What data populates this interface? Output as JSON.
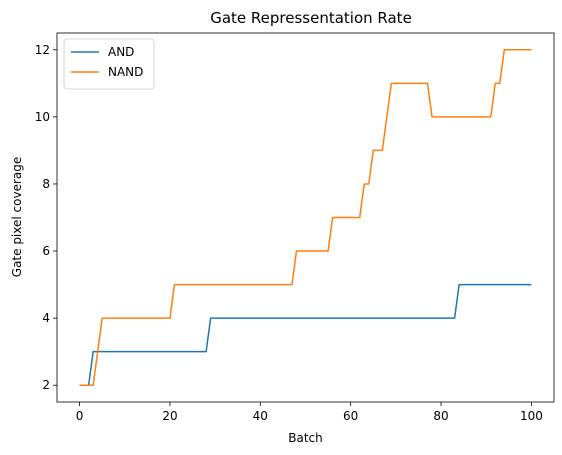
{
  "chart_data": {
    "type": "line",
    "title": "Gate Repressentation Rate",
    "xlabel": "Batch",
    "ylabel": "Gate pixel coverage",
    "xlim": [
      -5,
      105
    ],
    "ylim": [
      1.5,
      12.5
    ],
    "xticks": [
      0,
      20,
      40,
      60,
      80,
      100
    ],
    "yticks": [
      2,
      4,
      6,
      8,
      10,
      12
    ],
    "grid": false,
    "legend_position": "top-left",
    "series": [
      {
        "name": "AND",
        "color": "#1f77b4",
        "points": [
          [
            0,
            2
          ],
          [
            2,
            2
          ],
          [
            3,
            3
          ],
          [
            28,
            3
          ],
          [
            29,
            4
          ],
          [
            83,
            4
          ],
          [
            84,
            5
          ],
          [
            100,
            5
          ]
        ]
      },
      {
        "name": "NAND",
        "color": "#ff7f0e",
        "points": [
          [
            0,
            2
          ],
          [
            3,
            2
          ],
          [
            5,
            4
          ],
          [
            20,
            4
          ],
          [
            21,
            5
          ],
          [
            47,
            5
          ],
          [
            48,
            6
          ],
          [
            55,
            6
          ],
          [
            56,
            7
          ],
          [
            62,
            7
          ],
          [
            63,
            8
          ],
          [
            64,
            8
          ],
          [
            65,
            9
          ],
          [
            67,
            9
          ],
          [
            69,
            11
          ],
          [
            77,
            11
          ],
          [
            78,
            10
          ],
          [
            91,
            10
          ],
          [
            92,
            11
          ],
          [
            93,
            11
          ],
          [
            94,
            12
          ],
          [
            100,
            12
          ]
        ]
      }
    ]
  }
}
